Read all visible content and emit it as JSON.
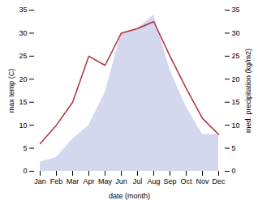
{
  "chart_data": {
    "type": "line",
    "categories": [
      "Jan",
      "Feb",
      "Mar",
      "Apr",
      "May",
      "Jun",
      "Jul",
      "Aug",
      "Sep",
      "Oct",
      "Nov",
      "Dec"
    ],
    "xlabel": "date (month)",
    "ylabel": "max temp (C)",
    "y2label": "med. precipitation (kg/m2)",
    "ylim": [
      0,
      35
    ],
    "yticks": [
      0,
      5,
      10,
      15,
      20,
      25,
      30,
      35
    ],
    "y2lim": [
      0,
      35
    ],
    "y2ticks": [
      0,
      5,
      10,
      15,
      20,
      25,
      30,
      35
    ],
    "grid": false,
    "series": [
      {
        "type": "area",
        "axis": "y2",
        "color": "#b0b8e0",
        "values": [
          2,
          3,
          7,
          10,
          17,
          30,
          31,
          34,
          22,
          14,
          8,
          8
        ]
      },
      {
        "type": "line",
        "color": "#b03040",
        "values": [
          6.0,
          10.0,
          15.0,
          25.0,
          23.0,
          30.0,
          31.0,
          32.5,
          25.0,
          18.0,
          11.5,
          8.0
        ]
      }
    ]
  }
}
